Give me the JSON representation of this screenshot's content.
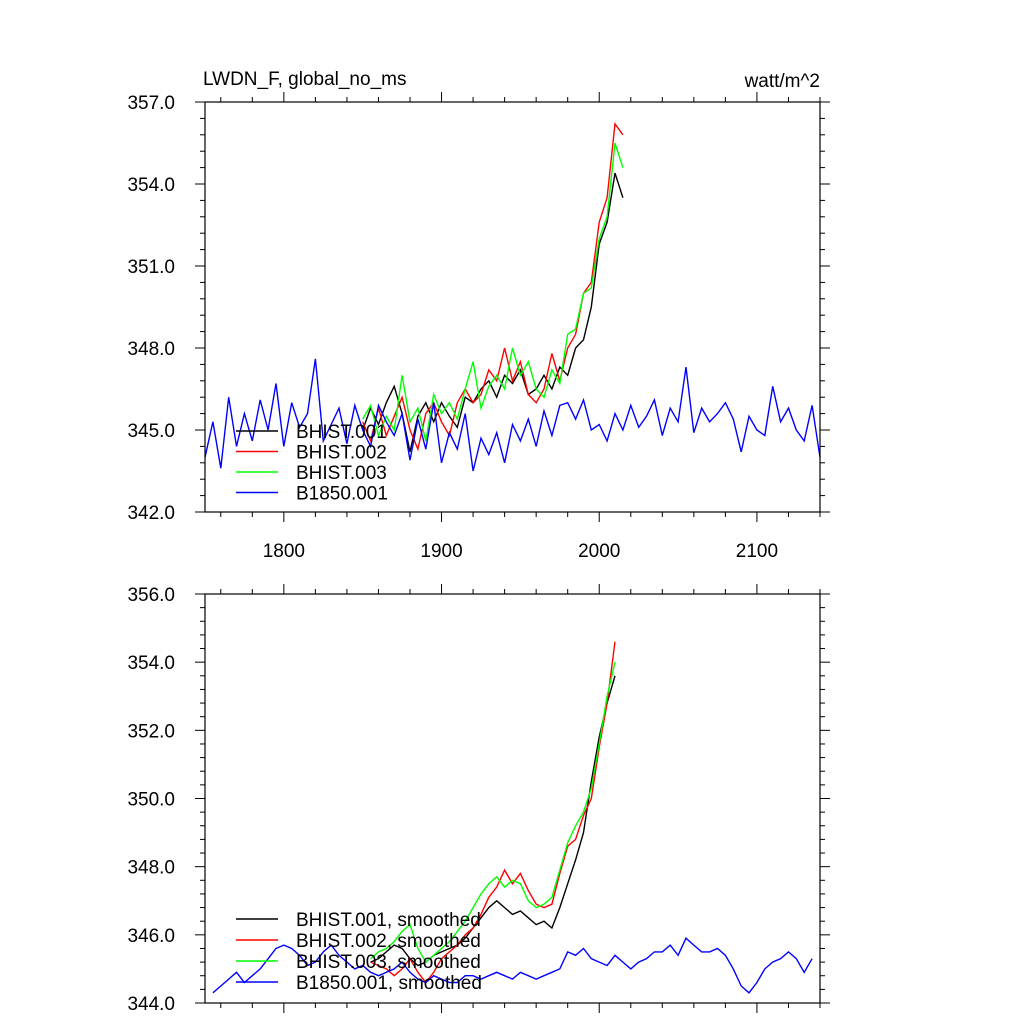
{
  "chart_data": [
    {
      "type": "line",
      "title": "LWDN_F, global_no_ms",
      "units": "watt/m^2",
      "xlim": [
        1750,
        2140
      ],
      "ylim": [
        342.0,
        357.0
      ],
      "xticks": [
        1800,
        1900,
        2000,
        2100
      ],
      "xtick_labels": [
        "1800",
        "1900",
        "2000",
        "2100"
      ],
      "yticks": [
        342.0,
        345.0,
        348.0,
        351.0,
        354.0,
        357.0
      ],
      "ytick_labels": [
        "342.0",
        "345.0",
        "348.0",
        "351.0",
        "354.0",
        "357.0"
      ],
      "legend_position": "bottom-left",
      "series": [
        {
          "name": "BHIST.001",
          "color": "#000000",
          "x": [
            1850,
            1855,
            1860,
            1865,
            1870,
            1875,
            1880,
            1885,
            1890,
            1895,
            1900,
            1905,
            1910,
            1915,
            1920,
            1925,
            1930,
            1935,
            1940,
            1945,
            1950,
            1955,
            1960,
            1965,
            1970,
            1975,
            1980,
            1985,
            1990,
            1995,
            2000,
            2005,
            2010,
            2015
          ],
          "y": [
            345.0,
            345.8,
            345.2,
            346.0,
            346.6,
            345.6,
            344.2,
            345.5,
            346.0,
            345.3,
            346.0,
            345.5,
            345.1,
            346.2,
            346.0,
            346.5,
            346.8,
            346.2,
            347.0,
            346.7,
            347.2,
            346.3,
            346.5,
            347.0,
            346.5,
            347.3,
            347.0,
            348.0,
            348.3,
            349.5,
            351.8,
            352.6,
            354.4,
            353.5
          ]
        },
        {
          "name": "BHIST.002",
          "color": "#ff0000",
          "x": [
            1850,
            1855,
            1860,
            1865,
            1870,
            1875,
            1880,
            1885,
            1890,
            1895,
            1900,
            1905,
            1910,
            1915,
            1920,
            1925,
            1930,
            1935,
            1940,
            1945,
            1950,
            1955,
            1960,
            1965,
            1970,
            1975,
            1980,
            1985,
            1990,
            1995,
            2000,
            2005,
            2010,
            2015
          ],
          "y": [
            345.3,
            344.6,
            345.8,
            344.8,
            345.5,
            346.2,
            345.0,
            344.3,
            345.6,
            346.0,
            345.3,
            344.8,
            346.0,
            346.5,
            346.0,
            346.3,
            347.2,
            346.8,
            348.0,
            346.8,
            347.5,
            346.3,
            346.0,
            346.5,
            347.8,
            346.8,
            348.0,
            348.5,
            350.0,
            350.4,
            352.6,
            353.5,
            356.2,
            355.8
          ]
        },
        {
          "name": "BHIST.003",
          "color": "#00ff00",
          "x": [
            1850,
            1855,
            1860,
            1865,
            1870,
            1875,
            1880,
            1885,
            1890,
            1895,
            1900,
            1905,
            1910,
            1915,
            1920,
            1925,
            1930,
            1935,
            1940,
            1945,
            1950,
            1955,
            1960,
            1965,
            1970,
            1975,
            1980,
            1985,
            1990,
            1995,
            2000,
            2005,
            2010,
            2015
          ],
          "y": [
            345.4,
            345.9,
            344.8,
            345.5,
            345.0,
            347.0,
            345.3,
            345.8,
            344.6,
            346.3,
            345.6,
            346.0,
            345.4,
            346.5,
            347.5,
            345.8,
            346.6,
            347.0,
            346.5,
            348.0,
            347.0,
            347.5,
            346.5,
            346.2,
            347.2,
            346.7,
            348.5,
            348.7,
            350.0,
            350.2,
            352.0,
            352.8,
            355.5,
            354.6
          ]
        },
        {
          "name": "B1850.001",
          "color": "#0000ff",
          "x": [
            1750,
            1755,
            1760,
            1765,
            1770,
            1775,
            1780,
            1785,
            1790,
            1795,
            1800,
            1805,
            1810,
            1815,
            1820,
            1825,
            1830,
            1835,
            1840,
            1845,
            1850,
            1855,
            1860,
            1865,
            1870,
            1875,
            1880,
            1885,
            1890,
            1895,
            1900,
            1905,
            1910,
            1915,
            1920,
            1925,
            1930,
            1935,
            1940,
            1945,
            1950,
            1955,
            1960,
            1965,
            1970,
            1975,
            1980,
            1985,
            1990,
            1995,
            2000,
            2005,
            2010,
            2015,
            2020,
            2025,
            2030,
            2035,
            2040,
            2045,
            2050,
            2055,
            2060,
            2065,
            2070,
            2075,
            2080,
            2085,
            2090,
            2095,
            2100,
            2105,
            2110,
            2115,
            2120,
            2125,
            2130,
            2135,
            2140
          ],
          "y": [
            344.0,
            345.3,
            343.6,
            346.2,
            344.4,
            345.6,
            344.6,
            346.1,
            345.0,
            346.7,
            344.4,
            346.0,
            345.1,
            345.6,
            347.6,
            344.6,
            345.2,
            345.8,
            344.5,
            345.9,
            345.0,
            344.4,
            345.9,
            345.3,
            344.8,
            345.6,
            343.9,
            345.4,
            344.3,
            346.0,
            343.8,
            344.9,
            344.3,
            345.6,
            343.5,
            344.7,
            344.1,
            344.9,
            343.8,
            345.2,
            344.6,
            345.4,
            344.4,
            345.7,
            344.8,
            345.9,
            346.0,
            345.4,
            346.1,
            345.0,
            345.2,
            344.6,
            345.6,
            345.0,
            345.9,
            345.1,
            345.5,
            346.1,
            344.8,
            345.8,
            345.3,
            347.3,
            344.9,
            345.8,
            345.3,
            345.6,
            346.0,
            345.4,
            344.2,
            345.5,
            345.0,
            344.8,
            346.6,
            345.3,
            345.8,
            345.0,
            344.6,
            345.9,
            344.0
          ]
        }
      ]
    },
    {
      "type": "line",
      "xlim": [
        1750,
        2140
      ],
      "ylim": [
        344.0,
        356.0
      ],
      "xticks": [
        1800,
        1900,
        2000,
        2100
      ],
      "yticks": [
        344.0,
        346.0,
        348.0,
        350.0,
        352.0,
        354.0,
        356.0
      ],
      "ytick_labels": [
        "344.0",
        "346.0",
        "348.0",
        "350.0",
        "352.0",
        "354.0",
        "356.0"
      ],
      "legend_position": "bottom-left",
      "series": [
        {
          "name": "BHIST.001, smoothed",
          "color": "#000000",
          "x": [
            1855,
            1860,
            1865,
            1870,
            1875,
            1880,
            1885,
            1890,
            1895,
            1900,
            1905,
            1910,
            1915,
            1920,
            1925,
            1930,
            1935,
            1940,
            1945,
            1950,
            1955,
            1960,
            1965,
            1970,
            1975,
            1980,
            1985,
            1990,
            1995,
            2000,
            2005,
            2010
          ],
          "y": [
            345.2,
            345.3,
            345.5,
            345.7,
            345.6,
            345.3,
            345.1,
            345.2,
            345.4,
            345.5,
            345.6,
            345.7,
            345.9,
            346.2,
            346.5,
            346.8,
            347.0,
            346.8,
            346.6,
            346.7,
            346.5,
            346.3,
            346.4,
            346.2,
            346.8,
            347.5,
            348.2,
            349.0,
            350.5,
            351.8,
            352.8,
            353.6
          ]
        },
        {
          "name": "BHIST.002, smoothed",
          "color": "#ff0000",
          "x": [
            1855,
            1860,
            1865,
            1870,
            1875,
            1880,
            1885,
            1890,
            1895,
            1900,
            1905,
            1910,
            1915,
            1920,
            1925,
            1930,
            1935,
            1940,
            1945,
            1950,
            1955,
            1960,
            1965,
            1970,
            1975,
            1980,
            1985,
            1990,
            1995,
            2000,
            2005,
            2010
          ],
          "y": [
            345.2,
            345.1,
            345.0,
            344.8,
            345.0,
            345.3,
            344.9,
            344.6,
            344.9,
            345.3,
            345.5,
            345.7,
            346.0,
            346.2,
            346.6,
            347.1,
            347.4,
            347.9,
            347.5,
            347.8,
            347.3,
            346.9,
            346.8,
            346.9,
            347.8,
            348.6,
            348.8,
            349.5,
            350.0,
            351.5,
            352.8,
            354.6
          ]
        },
        {
          "name": "BHIST.003, smoothed",
          "color": "#00ff00",
          "x": [
            1855,
            1860,
            1865,
            1870,
            1875,
            1880,
            1885,
            1890,
            1895,
            1900,
            1905,
            1910,
            1915,
            1920,
            1925,
            1930,
            1935,
            1940,
            1945,
            1950,
            1955,
            1960,
            1965,
            1970,
            1975,
            1980,
            1985,
            1990,
            1995,
            2000,
            2005,
            2010
          ],
          "y": [
            345.3,
            345.5,
            345.6,
            345.8,
            346.1,
            346.3,
            345.6,
            345.2,
            345.4,
            345.6,
            345.8,
            346.1,
            346.4,
            346.8,
            347.2,
            347.5,
            347.7,
            347.4,
            347.6,
            347.5,
            347.0,
            346.8,
            346.9,
            347.1,
            347.9,
            348.7,
            349.2,
            349.6,
            350.3,
            351.6,
            353.0,
            354.0
          ]
        },
        {
          "name": "B1850.001, smoothed",
          "color": "#0000ff",
          "x": [
            1755,
            1760,
            1765,
            1770,
            1775,
            1780,
            1785,
            1790,
            1795,
            1800,
            1805,
            1810,
            1815,
            1820,
            1825,
            1830,
            1835,
            1840,
            1845,
            1850,
            1855,
            1860,
            1865,
            1870,
            1875,
            1880,
            1885,
            1890,
            1895,
            1900,
            1905,
            1910,
            1915,
            1920,
            1925,
            1930,
            1935,
            1940,
            1945,
            1950,
            1955,
            1960,
            1965,
            1970,
            1975,
            1980,
            1985,
            1990,
            1995,
            2000,
            2005,
            2010,
            2015,
            2020,
            2025,
            2030,
            2035,
            2040,
            2045,
            2050,
            2055,
            2060,
            2065,
            2070,
            2075,
            2080,
            2085,
            2090,
            2095,
            2100,
            2105,
            2110,
            2115,
            2120,
            2125,
            2130,
            2135
          ],
          "y": [
            344.3,
            344.5,
            344.7,
            344.9,
            344.6,
            344.8,
            345.0,
            345.3,
            345.6,
            345.7,
            345.6,
            345.4,
            345.1,
            345.2,
            345.5,
            345.7,
            345.4,
            345.2,
            345.0,
            345.1,
            344.9,
            344.8,
            344.9,
            345.0,
            345.2,
            344.9,
            344.7,
            344.6,
            344.8,
            344.7,
            344.6,
            344.6,
            344.8,
            344.8,
            344.7,
            344.8,
            344.9,
            344.8,
            344.7,
            344.9,
            344.8,
            344.7,
            344.8,
            344.9,
            345.0,
            345.5,
            345.4,
            345.6,
            345.3,
            345.2,
            345.1,
            345.4,
            345.2,
            345.0,
            345.2,
            345.3,
            345.5,
            345.5,
            345.7,
            345.4,
            345.9,
            345.7,
            345.5,
            345.5,
            345.6,
            345.4,
            345.0,
            344.5,
            344.3,
            344.6,
            345.0,
            345.2,
            345.3,
            345.5,
            345.3,
            344.9,
            345.3
          ]
        }
      ]
    }
  ]
}
